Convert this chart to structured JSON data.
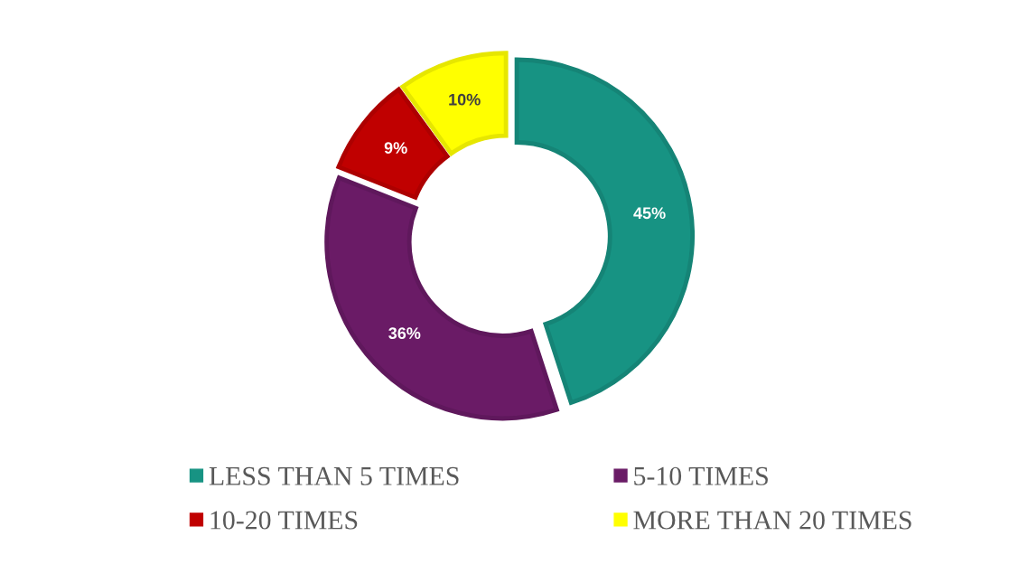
{
  "chart_data": {
    "type": "donut",
    "categories": [
      "LESS THAN 5 TIMES",
      "5-10 TIMES",
      "10-20 TIMES",
      "MORE THAN 20 TIMES"
    ],
    "values": [
      45,
      36,
      9,
      10
    ],
    "colors": [
      "#179383",
      "#6a1b66",
      "#c00000",
      "#ffff00"
    ],
    "value_labels": [
      "45%",
      "36%",
      "9%",
      "10%"
    ],
    "legend": "bottom"
  }
}
